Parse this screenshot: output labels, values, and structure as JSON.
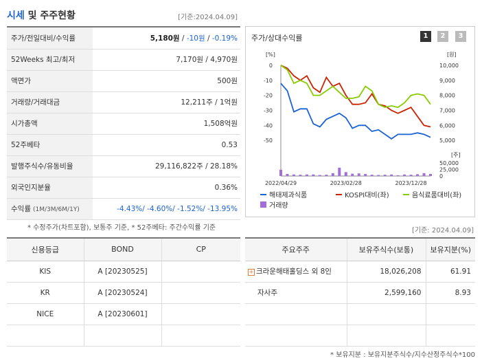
{
  "header": {
    "title_accent": "시세",
    "title_rest": "및 주주현황",
    "base_date": "[기준:2024.04.09]"
  },
  "quote": {
    "rows": [
      {
        "label": "주가/전일대비/수익률",
        "price": "5,180원",
        "change": "-10원",
        "rate": "-0.19%"
      },
      {
        "label": "52Weeks 최고/최저",
        "value": "7,170원 / 4,970원"
      },
      {
        "label": "액면가",
        "value": "500원"
      },
      {
        "label": "거래량/거래대금",
        "value": "12,211주 / 1억원"
      },
      {
        "label": "시가총액",
        "value": "1,508억원"
      },
      {
        "label": "52주베타",
        "value": "0.53"
      },
      {
        "label": "발행주식수/유동비율",
        "value": "29,116,822주 / 28.18%"
      },
      {
        "label": "외국인지분율",
        "value": "0.36%"
      },
      {
        "label": "수익률",
        "label_sub": "(1M/3M/6M/1Y)",
        "returns": "-4.43%/ -4.60%/ -1.52%/ -13.95%"
      }
    ],
    "footnote": "* 수정주가(차트포함), 보통주 기준, * 52주베타: 주간수익률 기준"
  },
  "chart_panel": {
    "title": "주가/상대수익률",
    "pages": [
      "1",
      "2",
      "3"
    ],
    "unit_left": "[%]",
    "unit_right": "[원]",
    "unit_volume": "[주]"
  },
  "chart_data": {
    "type": "line",
    "x": [
      "2022/04/29",
      "2022/06",
      "2022/07",
      "2022/08",
      "2022/09",
      "2022/10",
      "2022/11",
      "2022/12",
      "2023/01",
      "2023/02",
      "2023/03",
      "2023/04",
      "2023/05",
      "2023/06",
      "2023/07",
      "2023/08",
      "2023/09",
      "2023/10",
      "2023/11",
      "2023/12",
      "2024/01",
      "2024/02",
      "2024/03",
      "2024/04"
    ],
    "x_ticks": [
      "2022/04/29",
      "2023/02/28",
      "2023/12/28"
    ],
    "ylim_left": [
      -55,
      0
    ],
    "yticks_left": [
      0,
      -10,
      -20,
      -30,
      -40,
      -50
    ],
    "ylim_right": [
      4500,
      10000
    ],
    "yticks_right": [
      "10,000",
      "9,000",
      "8,000",
      "7,000",
      "6,000",
      "5,000"
    ],
    "volume_ticks": [
      "50,000",
      "25,000",
      "0"
    ],
    "volume_max": 50000,
    "series": [
      {
        "name": "해태제과식품",
        "color": "#1a62d6",
        "values": [
          -12,
          -17,
          -31,
          -29,
          -29,
          -39,
          -41,
          -36,
          -34,
          -32,
          -35,
          -42,
          -40,
          -40,
          -44,
          -43,
          -46,
          -49,
          -46,
          -46,
          -46,
          -45,
          -46,
          -48
        ]
      },
      {
        "name": "KOSPI대비(좌)",
        "color": "#cc2200",
        "values": [
          0,
          -2,
          -7,
          -10,
          -7,
          -15,
          -18,
          -8,
          -14,
          -12,
          -20,
          -26,
          -26,
          -25,
          -19,
          -26,
          -27,
          -30,
          -32,
          -30,
          -28,
          -34,
          -40,
          -41
        ]
      },
      {
        "name": "음식료품대비(좌)",
        "color": "#88cc00",
        "values": [
          0,
          -3,
          -12,
          -10,
          -12,
          -20,
          -20,
          -17,
          -14,
          -18,
          -22,
          -22,
          -21,
          -14,
          -17,
          -26,
          -28,
          -27,
          -28,
          -25,
          -20,
          -19,
          -20,
          -26
        ]
      }
    ],
    "volume": {
      "name": "거래량",
      "color": "#a070d8",
      "values": [
        24000,
        8000,
        6000,
        5000,
        6000,
        6000,
        4000,
        5000,
        11000,
        32000,
        15000,
        9000,
        10000,
        8000,
        5000,
        4000,
        5000,
        6000,
        3000,
        6000,
        5000,
        7000,
        11000,
        8000
      ]
    }
  },
  "legend": {
    "items": [
      "해태제과식품",
      "KOSPI대비(좌)",
      "음식료품대비(좌)",
      "거래량"
    ]
  },
  "base_date2": "[기준: 2024.04.09]",
  "credit": {
    "headers": [
      "신용등급",
      "BOND",
      "CP"
    ],
    "rows": [
      [
        "KIS",
        "A [20230525]",
        ""
      ],
      [
        "KR",
        "A [20230524]",
        ""
      ],
      [
        "NICE",
        "A [20230601]",
        ""
      ],
      [
        "",
        "",
        ""
      ]
    ]
  },
  "holders": {
    "headers": [
      "주요주주",
      "보유주식수(보통)",
      "보유지분(%)"
    ],
    "rows": [
      {
        "name": "크라운해태홀딩스 외 8인",
        "shares": "18,026,208",
        "pct": "61.91",
        "expandable": true
      },
      {
        "name": "자사주",
        "shares": "2,599,160",
        "pct": "8.93",
        "expandable": false
      },
      {
        "name": "",
        "shares": "",
        "pct": "",
        "expandable": false
      },
      {
        "name": "",
        "shares": "",
        "pct": "",
        "expandable": false
      }
    ],
    "footnote": "* 보유지분 : 보유지분주식수/지수산정주식수*100"
  }
}
